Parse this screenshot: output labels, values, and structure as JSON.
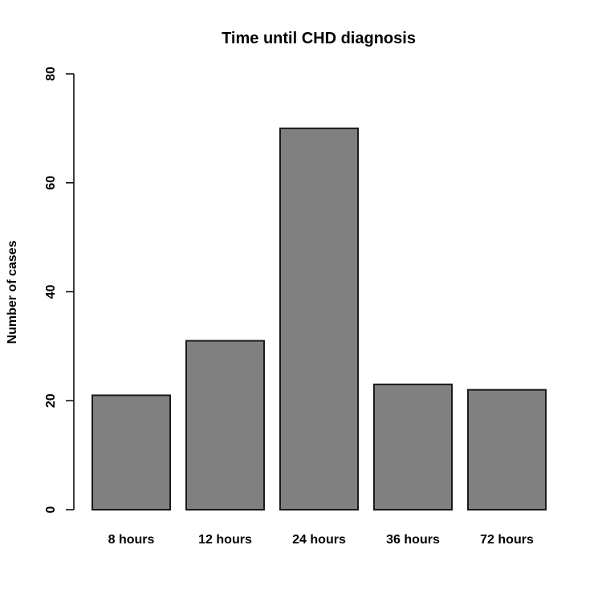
{
  "chart_data": {
    "type": "bar",
    "title": "Time until CHD diagnosis",
    "xlabel": "",
    "ylabel": "Number of cases",
    "categories": [
      "8 hours",
      "12 hours",
      "24 hours",
      "36 hours",
      "72 hours"
    ],
    "values": [
      21,
      31,
      70,
      23,
      22
    ],
    "ylim": [
      0,
      80
    ],
    "yticks": [
      0,
      20,
      40,
      60,
      80
    ],
    "ytick_labels": [
      "0",
      "20",
      "40",
      "60",
      "80"
    ],
    "grid": false,
    "legend": "none",
    "bar_color": "#808080",
    "bar_edge_color": "#1a1a1a"
  }
}
